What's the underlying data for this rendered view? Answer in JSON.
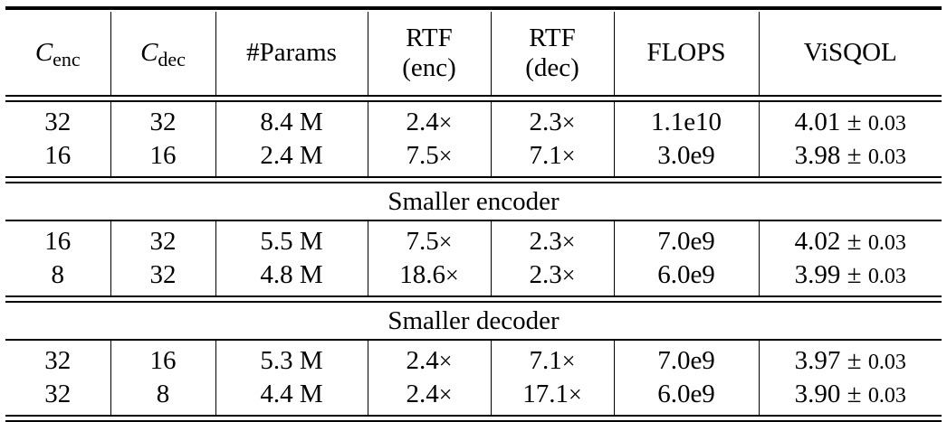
{
  "table": {
    "headers": [
      {
        "main": "C",
        "sub": "enc",
        "italic": true
      },
      {
        "main": "C",
        "sub": "dec",
        "italic": true
      },
      {
        "main": "#Params"
      },
      {
        "main": "RTF",
        "line2": "(enc)"
      },
      {
        "main": "RTF",
        "line2": "(dec)"
      },
      {
        "main": "FLOPS"
      },
      {
        "main": "ViSQOL"
      }
    ],
    "groups": [
      {
        "title": "",
        "rows": [
          {
            "c_enc": "32",
            "c_dec": "32",
            "params": "8.4 M",
            "rtf_enc": "2.4",
            "rtf_dec": "2.3",
            "flops": "1.1e10",
            "visqol": "4.01",
            "ci": "0.03"
          },
          {
            "c_enc": "16",
            "c_dec": "16",
            "params": "2.4 M",
            "rtf_enc": "7.5",
            "rtf_dec": "7.1",
            "flops": "3.0e9",
            "visqol": "3.98",
            "ci": "0.03"
          }
        ]
      },
      {
        "title": "Smaller encoder",
        "rows": [
          {
            "c_enc": "16",
            "c_dec": "32",
            "params": "5.5 M",
            "rtf_enc": "7.5",
            "rtf_dec": "2.3",
            "flops": "7.0e9",
            "visqol": "4.02",
            "ci": "0.03"
          },
          {
            "c_enc": "8",
            "c_dec": "32",
            "params": "4.8 M",
            "rtf_enc": "18.6",
            "rtf_dec": "2.3",
            "flops": "6.0e9",
            "visqol": "3.99",
            "ci": "0.03"
          }
        ]
      },
      {
        "title": "Smaller decoder",
        "rows": [
          {
            "c_enc": "32",
            "c_dec": "16",
            "params": "5.3 M",
            "rtf_enc": "2.4",
            "rtf_dec": "7.1",
            "flops": "7.0e9",
            "visqol": "3.97",
            "ci": "0.03"
          },
          {
            "c_enc": "32",
            "c_dec": "8",
            "params": "4.4 M",
            "rtf_enc": "2.4",
            "rtf_dec": "17.1",
            "flops": "6.0e9",
            "visqol": "3.90",
            "ci": "0.03"
          }
        ]
      }
    ],
    "symbols": {
      "times": "×",
      "plus_minus": "±"
    }
  }
}
